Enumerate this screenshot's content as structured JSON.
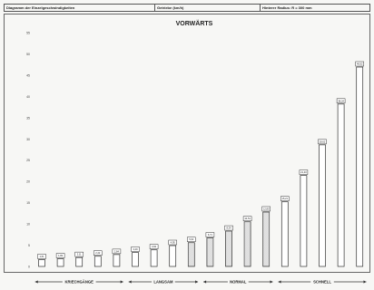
{
  "header": {
    "col1": "Diagramm der Einzelgeschwindigkeiten",
    "col2": "Getriebe (km/h)",
    "col3": "Hinterer Radius: R = 300 mm"
  },
  "chart_data": {
    "type": "bar",
    "title": "VORWÄRTS",
    "xlabel": "",
    "ylabel": "",
    "ylim": [
      0,
      55
    ],
    "yticks": [
      0,
      5,
      10,
      15,
      20,
      25,
      30,
      35,
      40,
      45,
      50,
      55
    ],
    "grid": false,
    "values": [
      1.6,
      1.8,
      2.1,
      2.4,
      2.8,
      3.3,
      3.9,
      4.9,
      5.6,
      6.7,
      8.3,
      10.5,
      12.8,
      15.2,
      21.4,
      28.6,
      38.2,
      46.9
    ],
    "value_labels": [
      "1,61",
      "1,83",
      "2,11",
      "2,42",
      "2,84",
      "3,29",
      "3,92",
      "4,95",
      "5,62",
      "6,71",
      "8,34",
      "10,51",
      "12,80",
      "15,21",
      "21,40",
      "28,62",
      "38,24",
      "46,92"
    ],
    "bar_fills": [
      "white",
      "white",
      "white",
      "white",
      "white",
      "white",
      "white",
      "white",
      "dotted",
      "dotted",
      "dotted",
      "dotted",
      "dotted",
      "white",
      "white",
      "white",
      "white",
      "white"
    ],
    "groups": [
      {
        "label": "KRIECHGÄNGE",
        "from": 0,
        "to": 4
      },
      {
        "label": "LANGSAM",
        "from": 5,
        "to": 8
      },
      {
        "label": "NORMAL",
        "from": 9,
        "to": 12
      },
      {
        "label": "SCHNELL",
        "from": 13,
        "to": 17
      }
    ]
  }
}
